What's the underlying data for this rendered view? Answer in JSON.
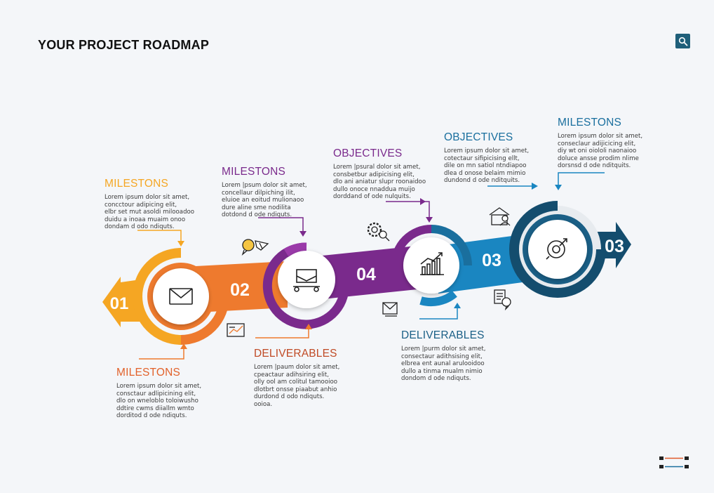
{
  "title": "YOUR PROJECT ROADMAP",
  "colors": {
    "yellow": "#f5a623",
    "orange": "#ee7a2e",
    "purple": "#7a2a8c",
    "blue": "#1a86c1",
    "navy": "#144d6e",
    "background": "#f4f6f9"
  },
  "numbers": {
    "n01": "01",
    "n02": "02",
    "n04": "04",
    "n03a": "03",
    "n03b": "03"
  },
  "blocks": [
    {
      "id": "milestons-yellow",
      "heading": "MILESTONS",
      "color": "#f5a623",
      "body": "Lorem ipsum dolor sit amet,\nconcctour adipicing elit,\nelbr set mut asoldi milooadoo\nduidu a inoaa muaim onoo\ndondam d odo ndiquts."
    },
    {
      "id": "milestons-purple",
      "heading": "MILESTONS",
      "color": "#7a2a8c",
      "body": "Lorem |psum dolor sit amet,\nconcellaur dilpiching ilit,\neluioe an eoitud mulionaoo\ndure aline sme nodilita\ndotdond d ode ndiquts."
    },
    {
      "id": "objectives-purple",
      "heading": "OBJECTIVES",
      "color": "#7a2a8c",
      "body": "Lorem |psural dolor sit amet,\nconsbetbur adipicising elit,\ndlo ani aniatur slupr roonaidoo\ndullo onoce nnaddua muijo\ndorddand of ode nulquits."
    },
    {
      "id": "objectives-blue",
      "heading": "OBJECTIVES",
      "color": "#1a6f9e",
      "body": "Lorem ipsum dolor sit amet,\ncotectaur sifipicising ellt,\ndile on mn satiol ntndiapoo\ndlea d onose belaim mimio\ndundond d ode nditquits."
    },
    {
      "id": "milestons-blue",
      "heading": "MILESTONS",
      "color": "#1a6f9e",
      "body": "Lorem ipsum dolor sit amet,\nconseclaur adijicicing elit,\ndiy wt oni oiololi naonaioo\ndoluce ansse prodim nlime\ndorsnsd d ode nditquits."
    },
    {
      "id": "milestons-orange",
      "heading": "MILESTONS",
      "color": "#e2622b",
      "body": "Lorem ipsum dolor sit amet,\nconsctaur adlipicining elit,\ndlo on wneloblo toloiwusho\nddtire cwms diiallm wmto\ndorditod d ode ndiquts."
    },
    {
      "id": "deliverables-orange",
      "heading": "DELIVERABLES",
      "color": "#c04a25",
      "body": "Lorem |paum dolor sit amet,\ncpeactaur adihsiring elit,\nolly ool am colitul tamooioo\ndlotbrt onsse piaabut anhio\ndurdond d odo ndiquts.\nooioa."
    },
    {
      "id": "deliverables-blue",
      "heading": "DELIVERABLES",
      "color": "#1a5f86",
      "body": "Lorem |purm dolor sit amet,\nconsectaur adithsising elit,\nelbrea ent aunal arulooidoo\ndullo a tinma mualm nimio\ndondom d ode ndiquts."
    }
  ]
}
